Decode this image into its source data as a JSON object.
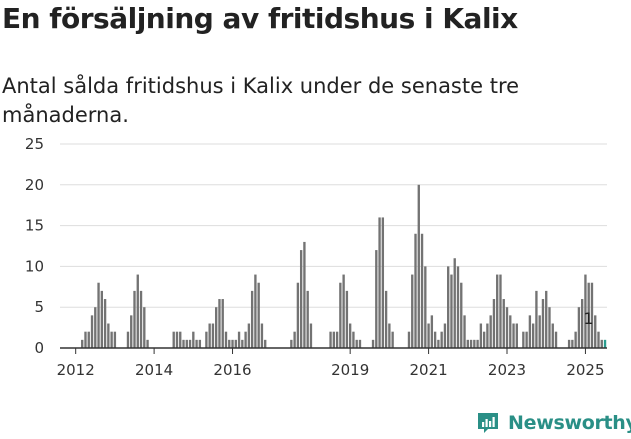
{
  "title": "En försäljning av fritidshus i Kalix",
  "subtitle": "Antal sålda fritidshus i Kalix under de senaste tre månaderna.",
  "brand": {
    "name": "Newsworthy",
    "icon": "newsworthy-logo-icon"
  },
  "colors": {
    "bar": "#737373",
    "highlight": "#2a9d8f",
    "grid": "#dddddd",
    "axis": "#333333"
  },
  "chart_data": {
    "type": "bar",
    "title": "En försäljning av fritidshus i Kalix",
    "xlabel": "",
    "ylabel": "",
    "ylim": [
      0,
      25
    ],
    "yticks": [
      0,
      5,
      10,
      15,
      20,
      25
    ],
    "x_range_years": [
      2011.6,
      2025.55
    ],
    "xticks": [
      {
        "label": "2012",
        "year": 2012.0
      },
      {
        "label": "2014",
        "year": 2014.0
      },
      {
        "label": "2016",
        "year": 2016.0
      },
      {
        "label": "2019",
        "year": 2019.0
      },
      {
        "label": "2021",
        "year": 2021.0
      },
      {
        "label": "2023",
        "year": 2023.0
      },
      {
        "label": "2025",
        "year": 2025.0
      }
    ],
    "start": {
      "year": 2012,
      "month": 1
    },
    "series": [
      {
        "name": "Sålda fritidshus (rullande tre månader)",
        "values": [
          0,
          0,
          1,
          2,
          2,
          4,
          5,
          8,
          7,
          6,
          3,
          2,
          2,
          0,
          0,
          0,
          2,
          4,
          7,
          9,
          7,
          5,
          1,
          0,
          0,
          0,
          0,
          0,
          0,
          0,
          2,
          2,
          2,
          1,
          1,
          1,
          2,
          1,
          1,
          0,
          2,
          3,
          3,
          5,
          6,
          6,
          2,
          1,
          1,
          1,
          2,
          1,
          2,
          3,
          7,
          9,
          8,
          3,
          1,
          0,
          0,
          0,
          0,
          0,
          0,
          0,
          1,
          2,
          8,
          12,
          13,
          7,
          3,
          0,
          0,
          0,
          0,
          0,
          2,
          2,
          2,
          8,
          9,
          7,
          3,
          2,
          1,
          1,
          0,
          0,
          0,
          1,
          12,
          16,
          16,
          7,
          3,
          2,
          0,
          0,
          0,
          0,
          2,
          9,
          14,
          20,
          14,
          10,
          3,
          4,
          2,
          1,
          2,
          3,
          10,
          9,
          11,
          10,
          8,
          4,
          1,
          1,
          1,
          1,
          3,
          2,
          3,
          4,
          6,
          9,
          9,
          6,
          5,
          4,
          3,
          3,
          0,
          2,
          2,
          4,
          3,
          7,
          4,
          6,
          7,
          5,
          3,
          2,
          0,
          0,
          0,
          1,
          1,
          2,
          5,
          6,
          9,
          8,
          8,
          4,
          2,
          1,
          1
        ]
      }
    ],
    "latest_label": {
      "text": "1",
      "value": 1,
      "year": 2025.0
    }
  }
}
